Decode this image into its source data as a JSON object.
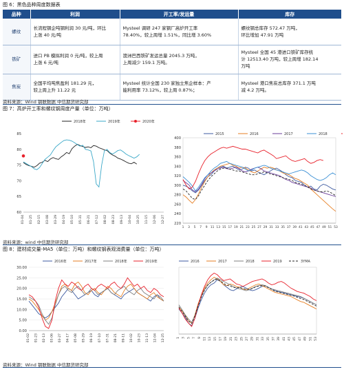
{
  "fig6": {
    "caption": "图 6：黑色品种周度数据表",
    "headers": [
      "品种",
      "利润",
      "开工率/发运量",
      "库存"
    ],
    "rows": [
      {
        "name": "螺纹",
        "profit": [
          "长流程钢企吨钢利润 30 元/吨，环比",
          "上涨 40 元/吨"
        ],
        "operation": [
          "Mysteel 调研 247 家钢厂高炉开工率",
          "78.40%，较上周增 1.51%，同比增 3.60%"
        ],
        "inventory": [
          "螺纹钢总库存 572.47 万吨，",
          "环比增加 47.91 万吨"
        ]
      },
      {
        "name": "铁矿",
        "profit": [
          "进口 PB 模拟利润 0 元/吨，较上周",
          "上涨 6 元/吨"
        ],
        "operation": [
          "澳洲巴西铁矿发运总量 2045.3 万吨，",
          "上周减少 159.1 万吨。"
        ],
        "inventory": [
          "Mysteel 全国 45 港进口铁矿库存统",
          "计 12513.40 万吨，较上周增 182.14",
          "万吨"
        ]
      },
      {
        "name": "焦炭",
        "profit": [
          "全国平均吨焦盈利 181.29 元，",
          "较上周上升 11.22 元"
        ],
        "operation": [
          "Mysteel 统计全国 230 家独立焦企样本：产",
          "能利用率 73.12%，较上周 0.87%；"
        ],
        "inventory": [
          "Mysteel 港口焦炭总库存 371.1 万吨",
          "减 4.2 万吨。"
        ]
      }
    ],
    "source": "资料来源：Wind  钢联数据  中信期货研究部"
  },
  "fig7": {
    "caption": "图 7：高炉开工率和螺纹钢周度产量（单位：万吨）",
    "source": "资料来源：wind  中信期货研究部"
  },
  "fig8": {
    "caption": "图 8：建材成交量-MA5（单位：万吨）和螺纹钢表观消费量（单位：万吨）",
    "source": "资料来源：Wind  钢联数据  中信期货研究部"
  },
  "chart_data": [
    {
      "type": "line",
      "title": "",
      "series": [
        {
          "name": "2018年",
          "color": "#222222",
          "values": [
            75.8,
            75.2,
            74.8,
            74.6,
            74.3,
            74.8,
            75.6,
            75.9,
            76.5,
            76.1,
            76.9,
            77.4,
            77.0,
            76.8,
            77.6,
            78.2,
            79.0,
            78.6,
            80.2,
            81.0,
            81.6,
            81.2,
            80.9,
            80.6,
            80.8,
            80.5,
            81.2,
            81.0,
            80.5,
            80.2,
            79.8,
            79.6,
            78.8,
            78.2,
            77.8,
            77.2,
            76.9,
            76.5,
            76.0,
            75.6,
            75.4,
            75.9,
            75.3
          ]
        },
        {
          "name": "2019年",
          "color": "#3aa8c8",
          "values": [
            76.0,
            75.5,
            75.0,
            74.5,
            73.8,
            73.5,
            74.2,
            75.5,
            76.8,
            77.5,
            78.2,
            79.6,
            80.8,
            81.5,
            82.2,
            82.8,
            83.0,
            82.9,
            82.6,
            82.1,
            81.5,
            81.0,
            81.3,
            80.0,
            79.8,
            79.5,
            76.0,
            69.0,
            68.0,
            75.0,
            79.5,
            80.0,
            79.0,
            78.5,
            79.0,
            79.6,
            79.8,
            79.2,
            78.5,
            78.0,
            77.6,
            77.2,
            77.6,
            78.4
          ]
        },
        {
          "name": "2020年",
          "color": "#e8202a",
          "values": [
            77.9
          ]
        }
      ],
      "ylim": [
        60,
        85
      ],
      "yticks": [
        60,
        65,
        70,
        75,
        80,
        85
      ],
      "xticks": [
        "01-04",
        "01-25",
        "02-15",
        "03-08",
        "03-29",
        "04-19",
        "05-10",
        "05-31",
        "06-21",
        "07-12",
        "08-02",
        "08-23",
        "09-13",
        "10-04",
        "10-25",
        "11-15",
        "12-06",
        "12-27"
      ]
    },
    {
      "type": "line",
      "title": "",
      "series": [
        {
          "name": "2015",
          "color": "#3d5aa0",
          "values": [
            300,
            298,
            294,
            288,
            284,
            290,
            300,
            310,
            318,
            322,
            330,
            336,
            338,
            340,
            336,
            338,
            340,
            336,
            332,
            334,
            338,
            336,
            330,
            332,
            328,
            325,
            322,
            326,
            330,
            334,
            336,
            332,
            328,
            322,
            318,
            316,
            310,
            308,
            306,
            300,
            296,
            298,
            292,
            290,
            298,
            302,
            300,
            296,
            292,
            290
          ]
        },
        {
          "name": "2016",
          "color": "#e67e22",
          "values": [
            280,
            275,
            268,
            262,
            270,
            282,
            296,
            308,
            318,
            326,
            332,
            336,
            340,
            342,
            344,
            346,
            342,
            340,
            336,
            338,
            336,
            332,
            328,
            326,
            330,
            334,
            338,
            336,
            338,
            336,
            332,
            330,
            326,
            324,
            322,
            318,
            314,
            312,
            308,
            304,
            300,
            292,
            286,
            280,
            274,
            268,
            262,
            256,
            250,
            245
          ]
        },
        {
          "name": "2017",
          "color": "#6a3d9a",
          "values": [
            310,
            305,
            300,
            290,
            286,
            292,
            302,
            314,
            322,
            326,
            330,
            334,
            336,
            338,
            335,
            334,
            336,
            338,
            335,
            330,
            328,
            330,
            334,
            336,
            338,
            335,
            330,
            328,
            326,
            324,
            322,
            320,
            316,
            312,
            310,
            306,
            304,
            302,
            300,
            298,
            296,
            294,
            290,
            288,
            286,
            284,
            282,
            280,
            278,
            276
          ]
        },
        {
          "name": "2018",
          "color": "#3a8fd4",
          "values": [
            318,
            312,
            306,
            298,
            288,
            296,
            306,
            316,
            322,
            330,
            336,
            340,
            346,
            348,
            350,
            346,
            344,
            342,
            340,
            338,
            334,
            330,
            332,
            336,
            338,
            340,
            342,
            340,
            336,
            334,
            332,
            330,
            328,
            326,
            324,
            326,
            328,
            330,
            332,
            330,
            326,
            320,
            316,
            312,
            310,
            312,
            316,
            322,
            326,
            322
          ]
        },
        {
          "name": "2019",
          "color": "#e8202a",
          "values": [
            312,
            300,
            292,
            296,
            308,
            325,
            340,
            352,
            360,
            366,
            370,
            374,
            378,
            380,
            378,
            380,
            382,
            380,
            378,
            376,
            376,
            374,
            372,
            370,
            368,
            372,
            374,
            370,
            366,
            362,
            356,
            358,
            360,
            362,
            356,
            352,
            350,
            352,
            354,
            356,
            350,
            346,
            348,
            352,
            354,
            352
          ]
        },
        {
          "name": "3YMA",
          "color": "#222222",
          "dashed": true,
          "values": [
            292,
            288,
            280,
            272,
            270,
            278,
            290,
            300,
            310,
            318,
            324,
            330,
            334,
            336,
            336,
            334,
            332,
            330,
            330,
            328,
            326,
            324,
            322,
            322,
            324,
            326,
            328,
            326,
            324,
            322,
            320,
            318,
            316,
            314,
            312,
            310,
            306,
            304,
            302,
            300,
            296,
            292,
            290,
            288,
            286,
            286,
            288,
            286,
            282,
            278
          ]
        }
      ],
      "ylim": [
        220,
        400
      ],
      "yticks": [
        220,
        240,
        260,
        280,
        300,
        320,
        340,
        360,
        380,
        400
      ],
      "xticks": [
        "1",
        "3",
        "5",
        "7",
        "9",
        "11",
        "13",
        "15",
        "17",
        "19",
        "21",
        "23",
        "25",
        "27",
        "29",
        "31",
        "33",
        "35",
        "37",
        "39",
        "41",
        "43",
        "45",
        "47",
        "49",
        "51",
        "53"
      ]
    },
    {
      "type": "line",
      "title": "",
      "series": [
        {
          "name": "2016年",
          "color": "#3d5aa0",
          "values": [
            14,
            12,
            10,
            8,
            7,
            6,
            7,
            9,
            11,
            13,
            16,
            18,
            20,
            19,
            17,
            15,
            16,
            17,
            18,
            19,
            17,
            16,
            18,
            19,
            20,
            18,
            17,
            16,
            15,
            17,
            18,
            19,
            20,
            18,
            17,
            16,
            15,
            14,
            16,
            17,
            15,
            14
          ]
        },
        {
          "name": "2017年",
          "color": "#e67e22",
          "values": [
            15,
            14,
            12,
            10,
            7,
            5,
            6,
            9,
            13,
            17,
            21,
            22,
            20,
            19,
            22,
            23,
            21,
            18,
            17,
            19,
            20,
            18,
            17,
            19,
            21,
            20,
            18,
            17,
            16,
            19,
            21,
            22,
            20,
            18,
            17,
            16,
            15,
            17,
            18,
            16,
            15,
            14
          ]
        },
        {
          "name": "2018年",
          "color": "#7f7f7f",
          "values": [
            16,
            15,
            14,
            12,
            8,
            5,
            3,
            6,
            12,
            17,
            20,
            21,
            19,
            18,
            20,
            21,
            19,
            17,
            18,
            20,
            19,
            17,
            18,
            19,
            20,
            18,
            17,
            19,
            20,
            21,
            19,
            18,
            17,
            19,
            20,
            18,
            17,
            16,
            15,
            17,
            16,
            14
          ]
        },
        {
          "name": "2019年",
          "color": "#e8202a",
          "values": [
            17,
            16,
            14,
            11,
            6,
            2,
            1,
            5,
            14,
            20,
            24,
            22,
            21,
            23,
            22,
            20,
            19,
            21,
            22,
            20,
            19,
            21,
            22,
            21,
            20,
            22,
            23,
            21,
            20,
            22,
            25,
            23,
            21,
            22,
            20,
            21,
            19,
            18,
            20,
            19,
            17,
            16
          ]
        }
      ],
      "ylim": [
        0,
        30
      ],
      "yticks": [
        "0.00",
        "5.00",
        "10.00",
        "15.00",
        "20.00",
        "25.00",
        "30.00"
      ],
      "xticks": [
        "01-02",
        "01-23",
        "02-13",
        "03-06",
        "03-27",
        "04-17",
        "05-08",
        "05-29",
        "06-19",
        "07-10",
        "07-31",
        "08-21",
        "09-11",
        "10-02",
        "10-23",
        "11-13",
        "12-04",
        "12-25"
      ]
    },
    {
      "type": "line",
      "title": "",
      "series": [
        {
          "name": "2016",
          "color": "#3d5aa0",
          "values": [
            260,
            250,
            240,
            226,
            220,
            238,
            262,
            282,
            298,
            310,
            318,
            322,
            330,
            326,
            318,
            312,
            306,
            304,
            308,
            312,
            314,
            310,
            306,
            304,
            306,
            310,
            314,
            316,
            312,
            308,
            304,
            302,
            300,
            298,
            296,
            294,
            292,
            290,
            288,
            286,
            282,
            278,
            274,
            270
          ]
        },
        {
          "name": "2017",
          "color": "#e67e22",
          "values": [
            265,
            255,
            244,
            232,
            226,
            246,
            272,
            292,
            310,
            322,
            330,
            336,
            332,
            326,
            318,
            316,
            320,
            318,
            314,
            312,
            308,
            306,
            310,
            314,
            318,
            320,
            316,
            312,
            308,
            304,
            300,
            298,
            296,
            294,
            292,
            290,
            286,
            282,
            278,
            276,
            272,
            268,
            264,
            260
          ]
        },
        {
          "name": "2018",
          "color": "#7f7f7f",
          "values": [
            270,
            258,
            246,
            236,
            228,
            244,
            268,
            290,
            306,
            318,
            324,
            330,
            334,
            330,
            326,
            322,
            318,
            314,
            310,
            308,
            306,
            304,
            306,
            310,
            314,
            316,
            318,
            316,
            312,
            308,
            306,
            304,
            302,
            300,
            298,
            296,
            294,
            292,
            290,
            286,
            282,
            278,
            274,
            270
          ]
        },
        {
          "name": "2019",
          "color": "#e8202a",
          "values": [
            262,
            250,
            236,
            226,
            218,
            238,
            268,
            294,
            314,
            330,
            340,
            346,
            342,
            334,
            328,
            330,
            332,
            326,
            320,
            318,
            314,
            318,
            322,
            326,
            328,
            330,
            332,
            328,
            322,
            318,
            320,
            324,
            326,
            322,
            316,
            310,
            306,
            302,
            300,
            298,
            294,
            290,
            284,
            280
          ]
        },
        {
          "name": "3YMA",
          "color": "#222222",
          "dashed": true,
          "values": [
            265,
            254,
            243,
            231,
            225,
            243,
            267,
            288,
            305,
            317,
            324,
            329,
            332,
            327,
            321,
            317,
            315,
            312,
            311,
            311,
            309,
            307,
            307,
            309,
            313,
            315,
            316,
            315,
            311,
            307,
            303,
            301,
            299,
            297,
            295,
            293,
            291,
            288,
            285,
            283,
            279,
            275,
            271,
            267
          ]
        }
      ],
      "ylim": [
        200,
        360
      ],
      "yticks": [],
      "xticks": [
        "1",
        "3",
        "5",
        "7",
        "9",
        "11",
        "13",
        "15",
        "17",
        "19",
        "21",
        "23",
        "25",
        "27",
        "29",
        "31",
        "33",
        "35",
        "37",
        "39",
        "41",
        "43",
        "45",
        "47",
        "49",
        "51",
        "53"
      ]
    }
  ]
}
